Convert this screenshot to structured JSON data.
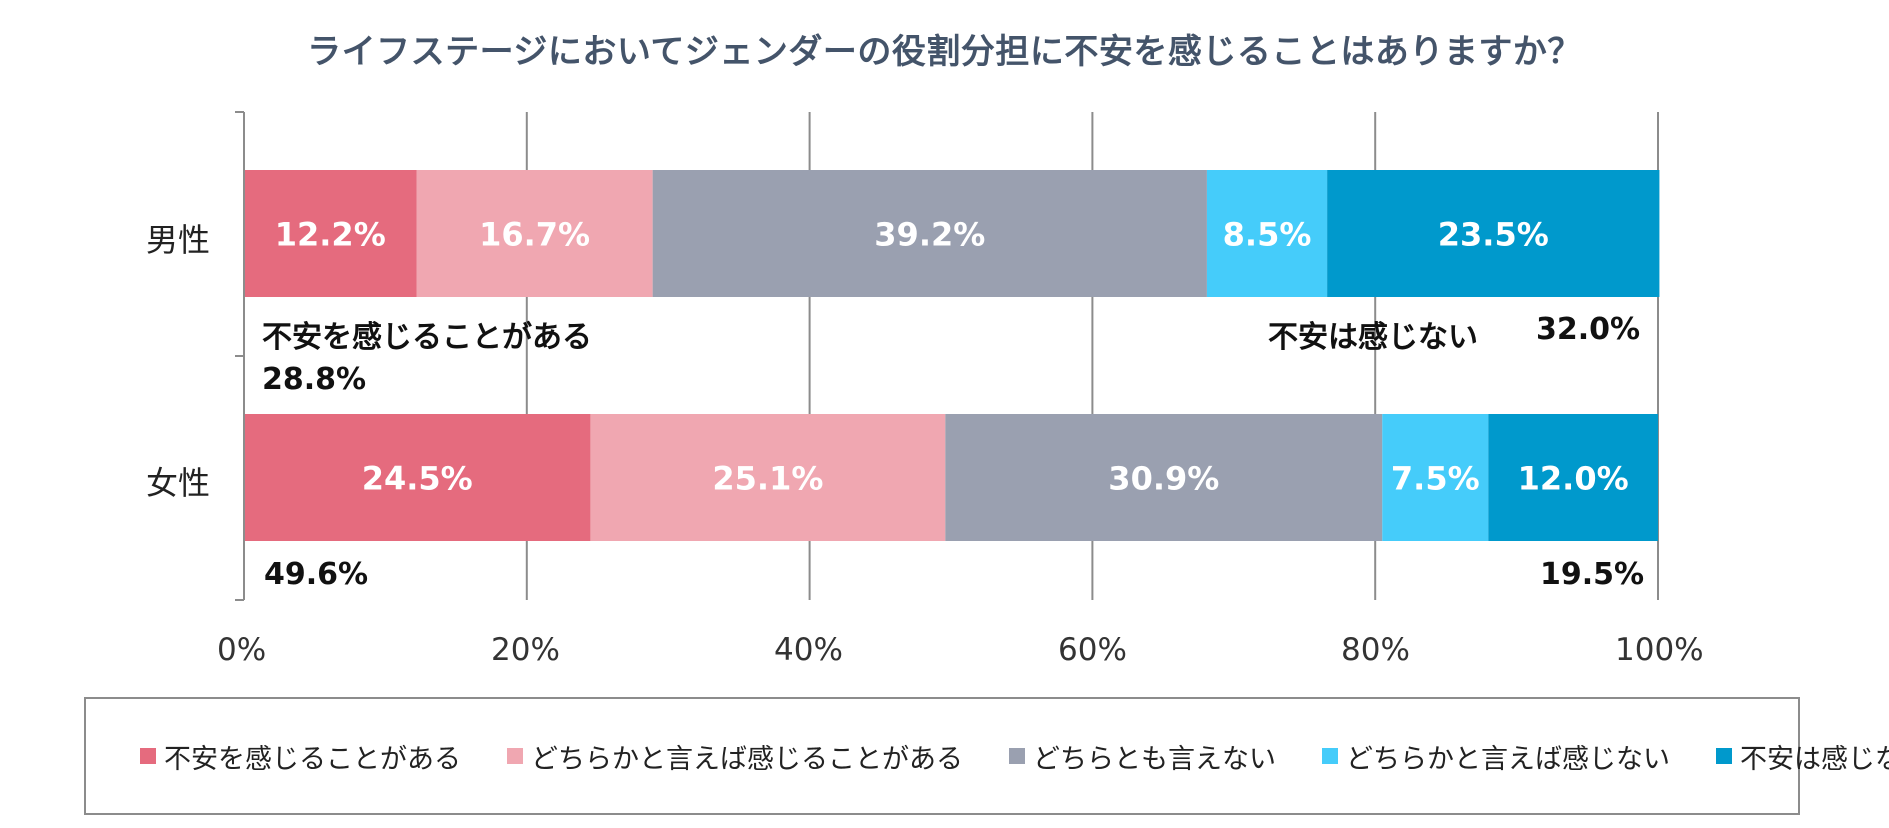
{
  "chart_data": {
    "type": "bar",
    "orientation": "horizontal",
    "stacked": true,
    "title": "ライフステージにおいてジェンダーの役割分担に不安を感じることはありますか？",
    "categories": [
      "男性",
      "女性"
    ],
    "series": [
      {
        "name": "不安を感じることがある",
        "color": "#e56b7e",
        "values": [
          12.2,
          24.5
        ]
      },
      {
        "name": "どちらかと言えば感じることがある",
        "color": "#f0a7b1",
        "values": [
          16.7,
          25.1
        ]
      },
      {
        "name": "どちらとも言えない",
        "color": "#9aa0b0",
        "values": [
          39.2,
          30.9
        ]
      },
      {
        "name": "どちらかと言えば感じない",
        "color": "#45ccfa",
        "values": [
          8.5,
          7.5
        ]
      },
      {
        "name": "不安は感じない",
        "color": "#0099cc",
        "values": [
          23.5,
          12.0
        ]
      }
    ],
    "value_labels": [
      [
        "12.2%",
        "16.7%",
        "39.2%",
        "8.5%",
        "23.5%"
      ],
      [
        "24.5%",
        "25.1%",
        "30.9%",
        "7.5%",
        "12.0%"
      ]
    ],
    "xlim": [
      0,
      100
    ],
    "x_ticks": [
      "0%",
      "20%",
      "40%",
      "60%",
      "80%",
      "100%"
    ],
    "grid": true,
    "legend_position": "bottom",
    "annotations": {
      "male_anxious_label": "不安を感じることがある",
      "male_anxious_total": "28.8%",
      "male_not_anxious_label": "不安は感じない",
      "male_not_anxious_total": "32.0%",
      "female_anxious_total": "49.6%",
      "female_not_anxious_total": "19.5%"
    }
  }
}
